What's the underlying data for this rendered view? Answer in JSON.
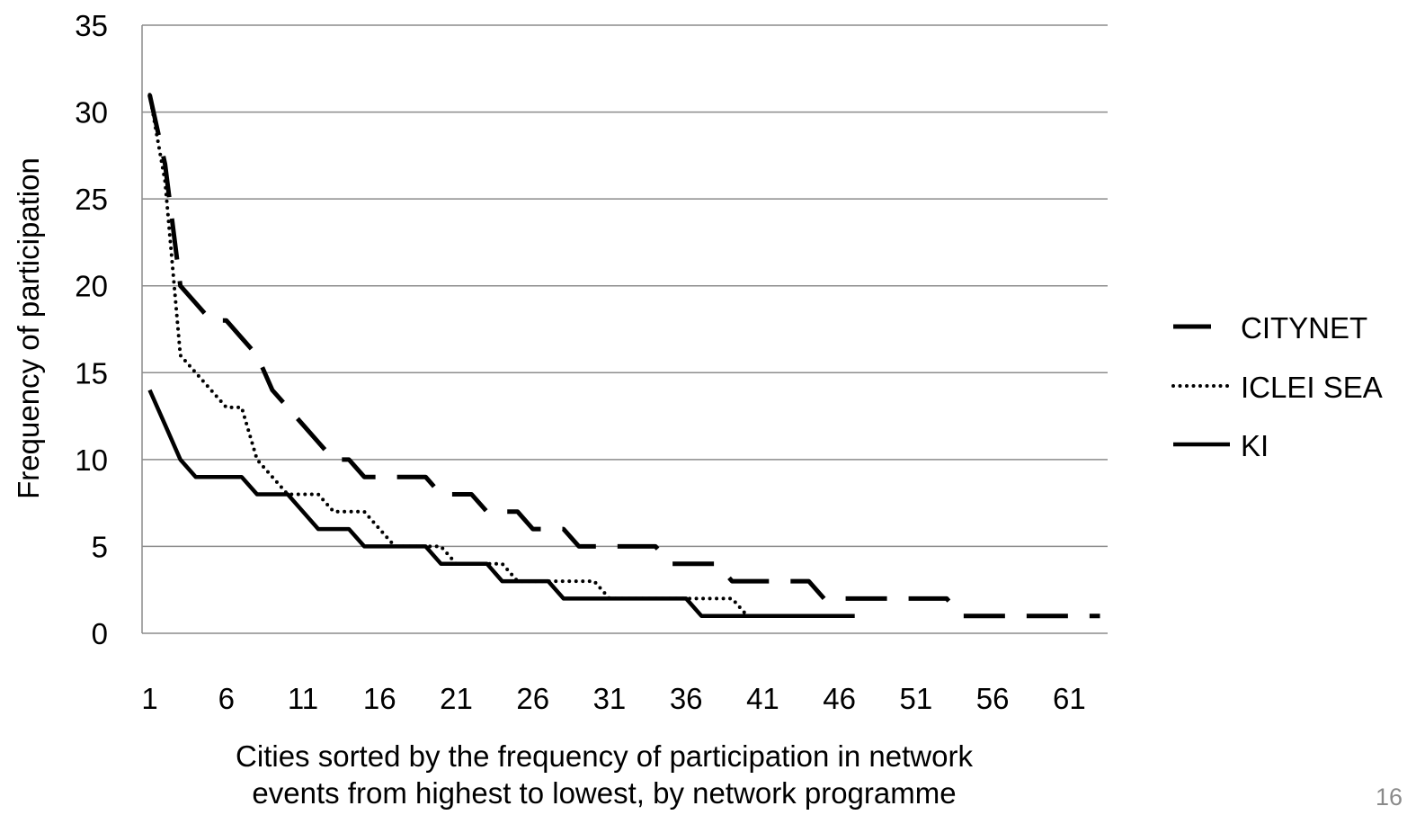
{
  "slide_number": "16",
  "chart_data": {
    "type": "line",
    "title": "",
    "xlabel": "Cities sorted by the frequency of participation in network events from highest to lowest, by network programme",
    "xlabel_lines": [
      "Cities sorted by the frequency of participation in network",
      "events from highest to lowest, by network programme"
    ],
    "ylabel": "Frequency of participation",
    "ylim": [
      0,
      35
    ],
    "xlim": [
      1,
      63
    ],
    "y_ticks": [
      0,
      5,
      10,
      15,
      20,
      25,
      30,
      35
    ],
    "x_ticks": [
      1,
      6,
      11,
      16,
      21,
      26,
      31,
      36,
      41,
      46,
      51,
      56,
      61
    ],
    "grid": "horizontal",
    "legend_position": "right",
    "series": [
      {
        "name": "CITYNET",
        "style": "long-dash",
        "values": [
          31,
          27,
          20,
          19,
          18,
          18,
          17,
          16,
          14,
          13,
          12,
          11,
          10,
          10,
          9,
          9,
          9,
          9,
          9,
          8,
          8,
          8,
          7,
          7,
          7,
          6,
          6,
          6,
          5,
          5,
          5,
          5,
          5,
          5,
          4,
          4,
          4,
          4,
          3,
          3,
          3,
          3,
          3,
          3,
          2,
          2,
          2,
          2,
          2,
          2,
          2,
          2,
          2,
          1,
          1,
          1,
          1,
          1,
          1,
          1,
          1,
          1,
          1
        ]
      },
      {
        "name": "ICLEI SEA",
        "style": "dotted",
        "values": [
          31,
          26,
          16,
          15,
          14,
          13,
          13,
          10,
          9,
          8,
          8,
          8,
          7,
          7,
          7,
          6,
          5,
          5,
          5,
          5,
          4,
          4,
          4,
          4,
          3,
          3,
          3,
          3,
          3,
          3,
          2,
          2,
          2,
          2,
          2,
          2,
          2,
          2,
          2,
          1,
          1,
          1,
          1,
          1,
          1,
          1,
          1
        ]
      },
      {
        "name": "KI",
        "style": "solid",
        "values": [
          14,
          12,
          10,
          9,
          9,
          9,
          9,
          8,
          8,
          8,
          7,
          6,
          6,
          6,
          5,
          5,
          5,
          5,
          5,
          4,
          4,
          4,
          4,
          3,
          3,
          3,
          3,
          2,
          2,
          2,
          2,
          2,
          2,
          2,
          2,
          2,
          1,
          1,
          1,
          1,
          1,
          1,
          1,
          1,
          1,
          1,
          1
        ]
      }
    ]
  }
}
